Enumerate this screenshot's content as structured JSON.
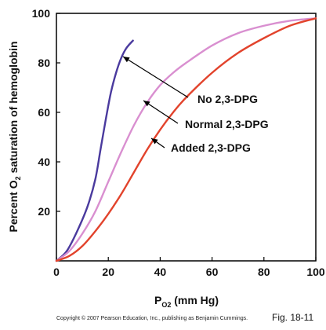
{
  "chart_data": {
    "type": "line",
    "xlabel_main": "P",
    "xlabel_sub": "O2",
    "xlabel_rest": " (mm Hg)",
    "ylabel_pre": "Percent O",
    "ylabel_sub": "2",
    "ylabel_post": " saturation of hemoglobin",
    "xlim": [
      0,
      100
    ],
    "ylim": [
      0,
      100
    ],
    "xticks": [
      0,
      20,
      40,
      60,
      80,
      100
    ],
    "yticks": [
      20,
      40,
      60,
      80,
      100
    ],
    "grid": false,
    "series": [
      {
        "name": "No 2,3-DPG",
        "color": "#4a3a9e",
        "x": [
          0,
          4,
          8,
          12,
          15,
          17,
          19,
          21,
          23,
          25,
          27,
          29.5
        ],
        "y": [
          0,
          4,
          12,
          22,
          33,
          45,
          57,
          68,
          76,
          82,
          86,
          89
        ]
      },
      {
        "name": "Normal 2,3-DPG",
        "color": "#d98fd0",
        "x": [
          0,
          5,
          10,
          15,
          20,
          25,
          30,
          35,
          40,
          45,
          50,
          60,
          70,
          80,
          90,
          100
        ],
        "y": [
          0,
          4,
          11,
          20,
          32,
          44,
          55,
          64,
          71,
          76,
          80,
          87,
          92,
          95,
          97,
          98
        ]
      },
      {
        "name": "Added 2,3-DPG",
        "color": "#e2432c",
        "x": [
          0,
          5,
          10,
          15,
          20,
          25,
          30,
          35,
          40,
          45,
          50,
          60,
          70,
          80,
          90,
          100
        ],
        "y": [
          0,
          2,
          6,
          12,
          19,
          27,
          36,
          45,
          53,
          60,
          66,
          76,
          84,
          90,
          95,
          98
        ]
      }
    ]
  },
  "footer": {
    "copyright": "Copyright © 2007 Pearson Education, Inc., publishing as Benjamin Cummings.",
    "figure": "Fig. 18-11"
  }
}
